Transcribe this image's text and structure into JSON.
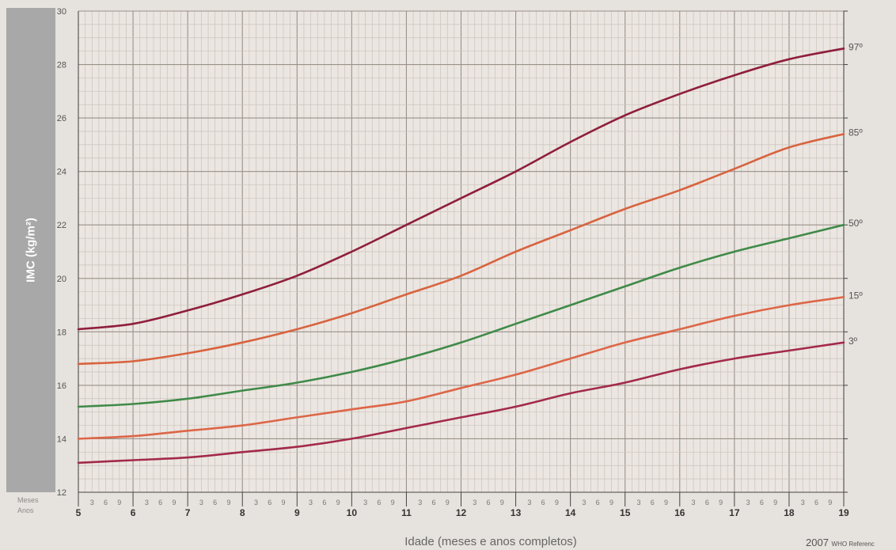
{
  "chart_data": {
    "type": "line",
    "title": "",
    "xlabel": "Idade (meses e anos completos)",
    "ylabel": "IMC (kg/m²)",
    "xlim": [
      5,
      19
    ],
    "ylim": [
      12,
      30
    ],
    "y_ticks": [
      "12",
      "14",
      "16",
      "18",
      "20",
      "22",
      "24",
      "26",
      "28",
      "30"
    ],
    "x_year_ticks": [
      "5",
      "6",
      "7",
      "8",
      "9",
      "10",
      "11",
      "12",
      "13",
      "14",
      "15",
      "16",
      "17",
      "18",
      "19"
    ],
    "x_month_ticks": [
      "3",
      "6",
      "9"
    ],
    "row_labels": {
      "months": "Meses",
      "years": "Anos"
    },
    "grid": true,
    "legend": "right-edge labels",
    "series": [
      {
        "name": "97º",
        "color": "#8f1e3c",
        "x": [
          5,
          6,
          7,
          8,
          9,
          10,
          11,
          12,
          13,
          14,
          15,
          16,
          17,
          18,
          19
        ],
        "values": [
          18.1,
          18.3,
          18.8,
          19.4,
          20.1,
          21.0,
          22.0,
          23.0,
          24.0,
          25.1,
          26.1,
          26.9,
          27.6,
          28.2,
          28.6
        ]
      },
      {
        "name": "85º",
        "color": "#d8633f",
        "x": [
          5,
          6,
          7,
          8,
          9,
          10,
          11,
          12,
          13,
          14,
          15,
          16,
          17,
          18,
          19
        ],
        "values": [
          16.8,
          16.9,
          17.2,
          17.6,
          18.1,
          18.7,
          19.4,
          20.1,
          21.0,
          21.8,
          22.6,
          23.3,
          24.1,
          24.9,
          25.4
        ]
      },
      {
        "name": "50º",
        "color": "#3f8a48",
        "x": [
          5,
          6,
          7,
          8,
          9,
          10,
          11,
          12,
          13,
          14,
          15,
          16,
          17,
          18,
          19
        ],
        "values": [
          15.2,
          15.3,
          15.5,
          15.8,
          16.1,
          16.5,
          17.0,
          17.6,
          18.3,
          19.0,
          19.7,
          20.4,
          21.0,
          21.5,
          22.0
        ]
      },
      {
        "name": "15º",
        "color": "#dd6648",
        "x": [
          5,
          6,
          7,
          8,
          9,
          10,
          11,
          12,
          13,
          14,
          15,
          16,
          17,
          18,
          19
        ],
        "values": [
          14.0,
          14.1,
          14.3,
          14.5,
          14.8,
          15.1,
          15.4,
          15.9,
          16.4,
          17.0,
          17.6,
          18.1,
          18.6,
          19.0,
          19.3
        ]
      },
      {
        "name": "3º",
        "color": "#a32a4a",
        "x": [
          5,
          6,
          7,
          8,
          9,
          10,
          11,
          12,
          13,
          14,
          15,
          16,
          17,
          18,
          19
        ],
        "values": [
          13.1,
          13.2,
          13.3,
          13.5,
          13.7,
          14.0,
          14.4,
          14.8,
          15.2,
          15.7,
          16.1,
          16.6,
          17.0,
          17.3,
          17.6
        ]
      }
    ],
    "colors": {
      "grid": "#ccc2bc",
      "grid_major": "#9b908a",
      "axis": "#444444",
      "background": "#e6e2dd"
    }
  },
  "footer": {
    "reference_year": "2007",
    "reference_text": "WHO Referenc"
  }
}
